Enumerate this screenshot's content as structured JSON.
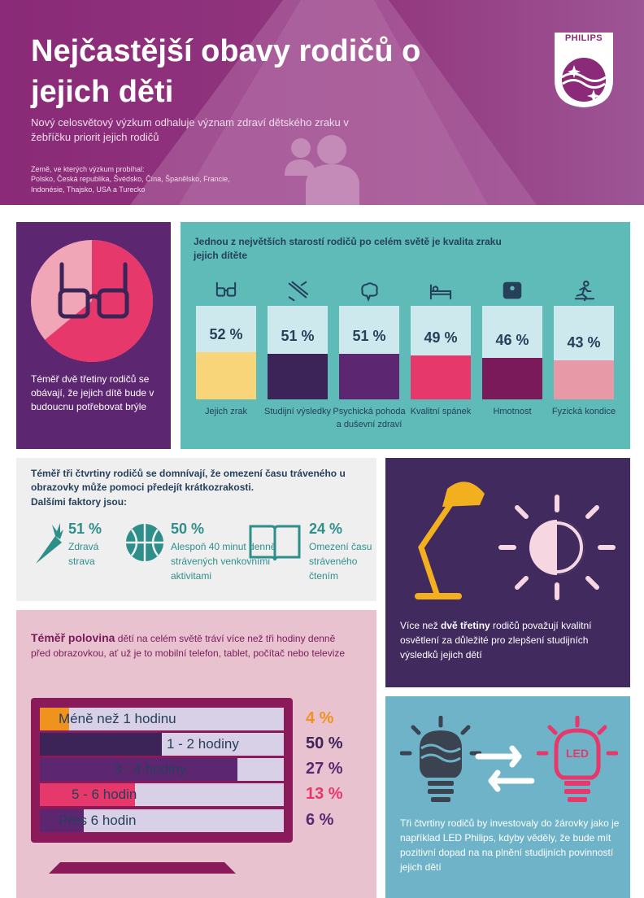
{
  "header": {
    "title": "Nejčastější obavy rodičů o jejich děti",
    "subtitle": "Nový celosvětový výzkum odhaluje význam zdraví dětského zraku v žebříčku priorit jejich rodičů",
    "countries_label": "Země, ve kterých výzkum probíhal:",
    "countries_list": "Polsko, Česká republika, Švédsko, Čína, Španělsko, Francie, Indonésie, Thajsko, USA a Turecko",
    "logo_text": "PHILIPS"
  },
  "glasses_panel": {
    "text": "Téměř dvě třetiny rodičů se obávají, že jejich dítě bude v budoucnu potřebovat brýle",
    "pie_share": 0.64
  },
  "bars_panel": {
    "title": "Jednou z největších starostí rodičů po celém světě je kvalita zraku jejich dítěte",
    "items": [
      {
        "pct": "52 %",
        "value": 52,
        "label": "Jejich zrak",
        "color": "#f9d57a",
        "icon": "glasses-icon"
      },
      {
        "pct": "51 %",
        "value": 51,
        "label": "Studijní výsledky",
        "color": "#3c2358",
        "icon": "pen-ruler-icon"
      },
      {
        "pct": "51 %",
        "value": 51,
        "label": "Psychická pohoda a duševní zdraví",
        "color": "#5d2670",
        "icon": "brain-icon"
      },
      {
        "pct": "49 %",
        "value": 49,
        "label": "Kvalitní spánek",
        "color": "#e6386a",
        "icon": "bed-icon"
      },
      {
        "pct": "46 %",
        "value": 46,
        "label": "Hmotnost",
        "color": "#7a1a5a",
        "icon": "scale-icon"
      },
      {
        "pct": "43 %",
        "value": 43,
        "label": "Fyzická kondice",
        "color": "#e899a8",
        "icon": "runner-icon"
      }
    ]
  },
  "screen_panel": {
    "text": "Téměř tři čtvrtiny rodičů se domnívají, že omezení času tráveného u obrazovky může pomoci předejít krátkozrakosti.",
    "factors_title": "Dalšími faktory jsou:",
    "factors": [
      {
        "pct": "51 %",
        "label": "Zdravá strava",
        "icon": "carrot-icon"
      },
      {
        "pct": "50 %",
        "label": "Alespoň 40 minut denně strávených venkovními aktivitami",
        "icon": "basketball-icon"
      },
      {
        "pct": "24 %",
        "label": "Omezení času stráveného čtením",
        "icon": "book-icon"
      }
    ]
  },
  "lamp_panel": {
    "text_before": "Více než ",
    "text_bold": "dvě třetiny",
    "text_after": " rodičů považují kvalitní osvětlení za důležité pro zlepšení studijních výsledků jejich dětí"
  },
  "tv_panel": {
    "text_bold": "Téměř polovina",
    "text_rest": " dětí na celém světě tráví více než tři hodiny denně před obrazovkou, ať už je to mobilní telefon, tablet, počítač nebo televize",
    "rows": [
      {
        "label": "Méně než 1 hodinu",
        "pct": "4 %",
        "value": 4,
        "color": "#f0921e"
      },
      {
        "label": "1 - 2 hodiny",
        "pct": "50 %",
        "value": 50,
        "color": "#3c2358"
      },
      {
        "label": "3 - 4 hodiny",
        "pct": "27 %",
        "value": 27,
        "color": "#5d2670"
      },
      {
        "label": "5 - 6 hodin",
        "pct": "13 %",
        "value": 13,
        "color": "#e6386a"
      },
      {
        "label": "Přes 6 hodin",
        "pct": "6 %",
        "value": 6,
        "color": "#5d2670"
      }
    ]
  },
  "led_panel": {
    "led_word": "LED",
    "text": "Tři čtvrtiny rodičů by investovaly do žárovky jako je například LED Philips, kdyby věděly, že bude mít pozitivní dopad na na plnění studijních povinností jejich dětí"
  }
}
